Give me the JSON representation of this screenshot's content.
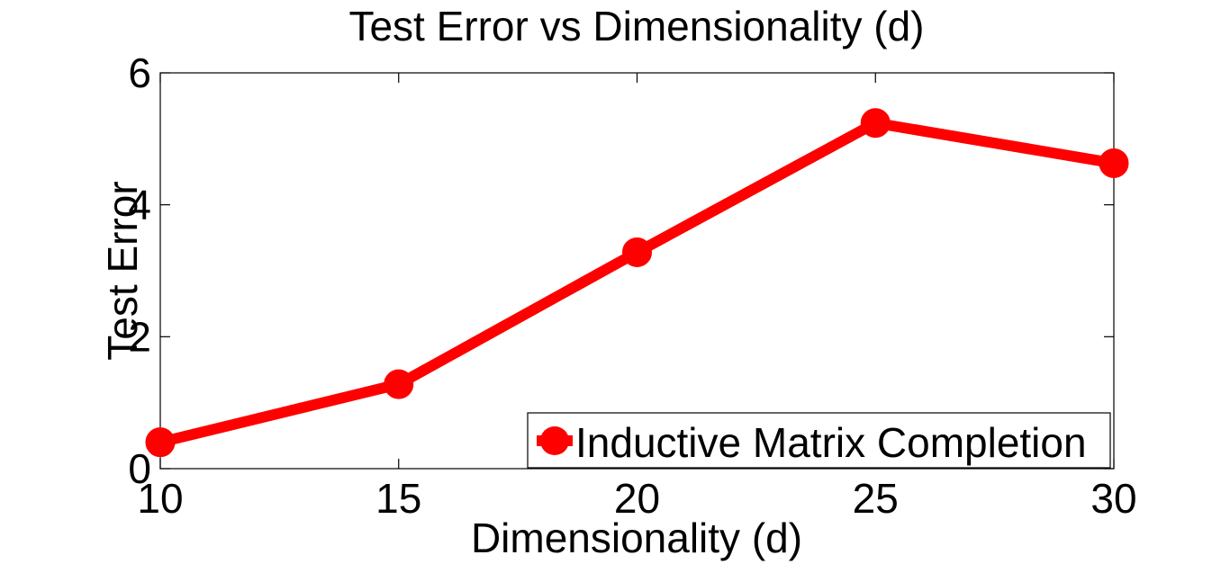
{
  "chart_data": {
    "type": "line",
    "title": "Test Error vs Dimensionality (d)",
    "xlabel": "Dimensionality (d)",
    "ylabel": "Test Error",
    "x": [
      10,
      15,
      20,
      25,
      30
    ],
    "series": [
      {
        "name": "Inductive Matrix Completion",
        "values": [
          0.4,
          1.28,
          3.28,
          5.24,
          4.63
        ],
        "color": "#ff0000",
        "marker": "circle"
      }
    ],
    "xlim": [
      10,
      30
    ],
    "ylim": [
      0,
      6
    ],
    "xticks": [
      "10",
      "15",
      "20",
      "25",
      "30"
    ],
    "yticks": [
      "0",
      "2",
      "4",
      "6"
    ],
    "grid": false,
    "legend_position": "bottom-right"
  }
}
